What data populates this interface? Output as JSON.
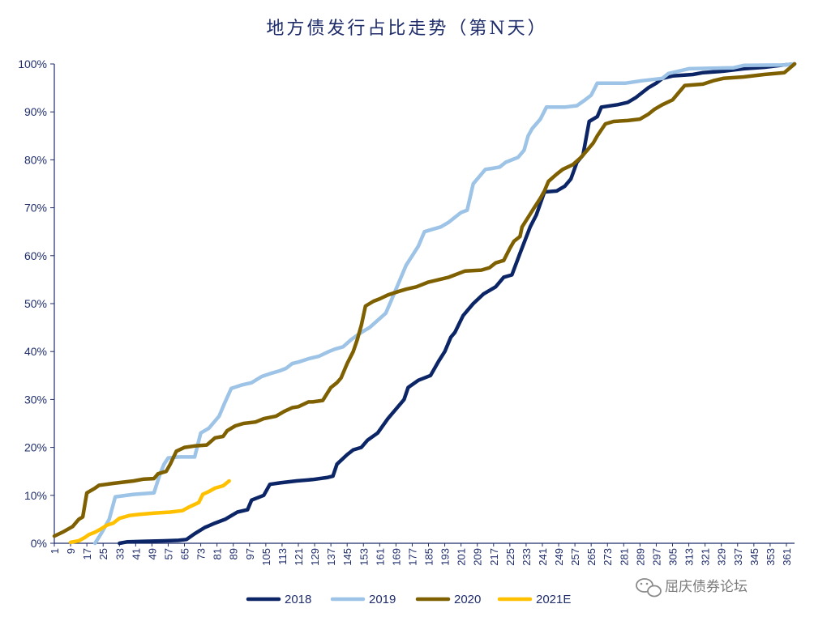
{
  "chart_data": {
    "type": "line",
    "title": "地方债发行占比走势（第N天）",
    "xlabel": "",
    "ylabel": "",
    "xlim": [
      1,
      365
    ],
    "ylim": [
      0,
      100
    ],
    "y_ticks": [
      "0%",
      "10%",
      "20%",
      "30%",
      "40%",
      "50%",
      "60%",
      "70%",
      "80%",
      "90%",
      "100%"
    ],
    "x_ticks": [
      "1",
      "9",
      "17",
      "25",
      "33",
      "41",
      "49",
      "57",
      "65",
      "73",
      "81",
      "89",
      "97",
      "105",
      "113",
      "121",
      "129",
      "137",
      "145",
      "153",
      "161",
      "169",
      "177",
      "185",
      "193",
      "201",
      "209",
      "217",
      "225",
      "233",
      "241",
      "249",
      "257",
      "265",
      "273",
      "281",
      "289",
      "297",
      "305",
      "313",
      "321",
      "329",
      "337",
      "345",
      "353",
      "361"
    ],
    "grid": false,
    "legend_position": "bottom",
    "series": [
      {
        "name": "2018",
        "color": "#0b2566",
        "points": [
          [
            33,
            0
          ],
          [
            37,
            0.3
          ],
          [
            45,
            0.4
          ],
          [
            55,
            0.5
          ],
          [
            62,
            0.6
          ],
          [
            66,
            0.8
          ],
          [
            70,
            2
          ],
          [
            75,
            3.3
          ],
          [
            80,
            4.2
          ],
          [
            85,
            5
          ],
          [
            91,
            6.5
          ],
          [
            96,
            7
          ],
          [
            98,
            9
          ],
          [
            104,
            10
          ],
          [
            107,
            12.3
          ],
          [
            112,
            12.6
          ],
          [
            120,
            13
          ],
          [
            128,
            13.3
          ],
          [
            135,
            13.7
          ],
          [
            138,
            14
          ],
          [
            140,
            16.5
          ],
          [
            145,
            18.5
          ],
          [
            148,
            19.5
          ],
          [
            152,
            20
          ],
          [
            155,
            21.5
          ],
          [
            160,
            23
          ],
          [
            165,
            26
          ],
          [
            170,
            28.5
          ],
          [
            173,
            30
          ],
          [
            175,
            32.5
          ],
          [
            180,
            34
          ],
          [
            186,
            35
          ],
          [
            190,
            38
          ],
          [
            193,
            40
          ],
          [
            196,
            43
          ],
          [
            198,
            44
          ],
          [
            202,
            47.5
          ],
          [
            207,
            50
          ],
          [
            212,
            52
          ],
          [
            218,
            53.5
          ],
          [
            222,
            55.5
          ],
          [
            226,
            56
          ],
          [
            230,
            60.5
          ],
          [
            235,
            66
          ],
          [
            238,
            68.5
          ],
          [
            242,
            73.3
          ],
          [
            248,
            73.5
          ],
          [
            252,
            74.5
          ],
          [
            255,
            76
          ],
          [
            258,
            79.5
          ],
          [
            261,
            81
          ],
          [
            264,
            88
          ],
          [
            268,
            89
          ],
          [
            270,
            91
          ],
          [
            278,
            91.5
          ],
          [
            283,
            92
          ],
          [
            287,
            93
          ],
          [
            290,
            94
          ],
          [
            293,
            95
          ],
          [
            297,
            96
          ],
          [
            300,
            97
          ],
          [
            305,
            97.5
          ],
          [
            315,
            97.8
          ],
          [
            320,
            98.2
          ],
          [
            330,
            98.5
          ],
          [
            340,
            99
          ],
          [
            350,
            99.3
          ],
          [
            360,
            99.8
          ],
          [
            365,
            100
          ]
        ]
      },
      {
        "name": "2019",
        "color": "#9dc3e6",
        "points": [
          [
            21,
            0
          ],
          [
            24,
            2
          ],
          [
            28,
            5
          ],
          [
            31,
            9.7
          ],
          [
            40,
            10.2
          ],
          [
            50,
            10.5
          ],
          [
            53,
            14.5
          ],
          [
            55,
            16.5
          ],
          [
            57,
            17.8
          ],
          [
            62,
            18
          ],
          [
            70,
            18
          ],
          [
            73,
            23
          ],
          [
            77,
            24
          ],
          [
            82,
            26.5
          ],
          [
            85,
            29.5
          ],
          [
            88,
            32.3
          ],
          [
            93,
            33
          ],
          [
            98,
            33.5
          ],
          [
            103,
            34.8
          ],
          [
            108,
            35.5
          ],
          [
            112,
            36
          ],
          [
            115,
            36.5
          ],
          [
            118,
            37.5
          ],
          [
            121,
            37.8
          ],
          [
            126,
            38.5
          ],
          [
            131,
            39
          ],
          [
            136,
            40
          ],
          [
            139,
            40.5
          ],
          [
            143,
            41
          ],
          [
            147,
            42.5
          ],
          [
            152,
            44
          ],
          [
            156,
            45
          ],
          [
            160,
            46.5
          ],
          [
            164,
            48
          ],
          [
            167,
            51
          ],
          [
            171,
            55
          ],
          [
            174,
            58
          ],
          [
            177,
            60
          ],
          [
            180,
            62
          ],
          [
            183,
            65
          ],
          [
            187,
            65.5
          ],
          [
            191,
            66
          ],
          [
            195,
            67
          ],
          [
            198,
            68
          ],
          [
            201,
            69
          ],
          [
            204,
            69.5
          ],
          [
            207,
            75
          ],
          [
            210,
            76.5
          ],
          [
            213,
            78
          ],
          [
            216,
            78.2
          ],
          [
            220,
            78.5
          ],
          [
            223,
            79.5
          ],
          [
            226,
            80
          ],
          [
            229,
            80.5
          ],
          [
            232,
            82
          ],
          [
            234,
            85
          ],
          [
            236,
            86.5
          ],
          [
            240,
            88.5
          ],
          [
            243,
            91
          ],
          [
            252,
            91
          ],
          [
            258,
            91.3
          ],
          [
            262,
            92.5
          ],
          [
            265,
            93.5
          ],
          [
            268,
            96
          ],
          [
            276,
            96
          ],
          [
            282,
            96
          ],
          [
            290,
            96.5
          ],
          [
            300,
            97
          ],
          [
            303,
            98
          ],
          [
            313,
            99
          ],
          [
            335,
            99.2
          ],
          [
            340,
            99.7
          ],
          [
            360,
            99.8
          ],
          [
            365,
            100
          ]
        ]
      },
      {
        "name": "2020",
        "color": "#7f6000",
        "points": [
          [
            1,
            1.5
          ],
          [
            5,
            2.3
          ],
          [
            10,
            3.5
          ],
          [
            13,
            5
          ],
          [
            15,
            5.5
          ],
          [
            17,
            10.5
          ],
          [
            21,
            11.5
          ],
          [
            23,
            12.1
          ],
          [
            30,
            12.5
          ],
          [
            40,
            13
          ],
          [
            45,
            13.4
          ],
          [
            50,
            13.5
          ],
          [
            52,
            14.5
          ],
          [
            56,
            15
          ],
          [
            58,
            16.5
          ],
          [
            61,
            19.2
          ],
          [
            65,
            20
          ],
          [
            70,
            20.3
          ],
          [
            76,
            20.5
          ],
          [
            80,
            22
          ],
          [
            84,
            22.3
          ],
          [
            86,
            23.5
          ],
          [
            90,
            24.5
          ],
          [
            94,
            25
          ],
          [
            100,
            25.3
          ],
          [
            104,
            26
          ],
          [
            110,
            26.5
          ],
          [
            114,
            27.5
          ],
          [
            118,
            28.3
          ],
          [
            121,
            28.5
          ],
          [
            126,
            29.5
          ],
          [
            128,
            29.5
          ],
          [
            133,
            29.8
          ],
          [
            137,
            32.5
          ],
          [
            140,
            33.5
          ],
          [
            142,
            34.5
          ],
          [
            145,
            37.5
          ],
          [
            148,
            40
          ],
          [
            150,
            42.5
          ],
          [
            152,
            45.5
          ],
          [
            154,
            49.5
          ],
          [
            158,
            50.5
          ],
          [
            161,
            51
          ],
          [
            165,
            51.8
          ],
          [
            170,
            52.5
          ],
          [
            174,
            53
          ],
          [
            179,
            53.5
          ],
          [
            185,
            54.5
          ],
          [
            190,
            55
          ],
          [
            195,
            55.5
          ],
          [
            198,
            56
          ],
          [
            203,
            56.8
          ],
          [
            211,
            57
          ],
          [
            215,
            57.5
          ],
          [
            218,
            58.5
          ],
          [
            222,
            59
          ],
          [
            225,
            61.5
          ],
          [
            227,
            63
          ],
          [
            230,
            64
          ],
          [
            231,
            66
          ],
          [
            234,
            68
          ],
          [
            237,
            70
          ],
          [
            240,
            72
          ],
          [
            242,
            73.5
          ],
          [
            244,
            75.5
          ],
          [
            248,
            77
          ],
          [
            251,
            78
          ],
          [
            256,
            79
          ],
          [
            260,
            80.5
          ],
          [
            263,
            82
          ],
          [
            266,
            83.5
          ],
          [
            268,
            85
          ],
          [
            272,
            87.5
          ],
          [
            276,
            88
          ],
          [
            283,
            88.2
          ],
          [
            289,
            88.5
          ],
          [
            293,
            89.5
          ],
          [
            296,
            90.5
          ],
          [
            300,
            91.5
          ],
          [
            305,
            92.5
          ],
          [
            308,
            94
          ],
          [
            311,
            95.5
          ],
          [
            320,
            95.8
          ],
          [
            325,
            96.5
          ],
          [
            330,
            97
          ],
          [
            340,
            97.3
          ],
          [
            350,
            97.8
          ],
          [
            360,
            98.2
          ],
          [
            365,
            100
          ]
        ]
      },
      {
        "name": "2021E",
        "color": "#ffc000",
        "points": [
          [
            9,
            0.2
          ],
          [
            13,
            0.5
          ],
          [
            16,
            1.2
          ],
          [
            18,
            1.8
          ],
          [
            21,
            2.3
          ],
          [
            24,
            3
          ],
          [
            27,
            3.8
          ],
          [
            30,
            4.2
          ],
          [
            33,
            5.2
          ],
          [
            38,
            5.8
          ],
          [
            42,
            6
          ],
          [
            50,
            6.3
          ],
          [
            58,
            6.5
          ],
          [
            64,
            6.8
          ],
          [
            67,
            7.5
          ],
          [
            72,
            8.5
          ],
          [
            74,
            10.2
          ],
          [
            77,
            10.8
          ],
          [
            80,
            11.5
          ],
          [
            84,
            12
          ],
          [
            87,
            13
          ]
        ]
      }
    ]
  },
  "watermark": {
    "text": "屈庆债券论坛",
    "icon": "wechat-icon"
  }
}
